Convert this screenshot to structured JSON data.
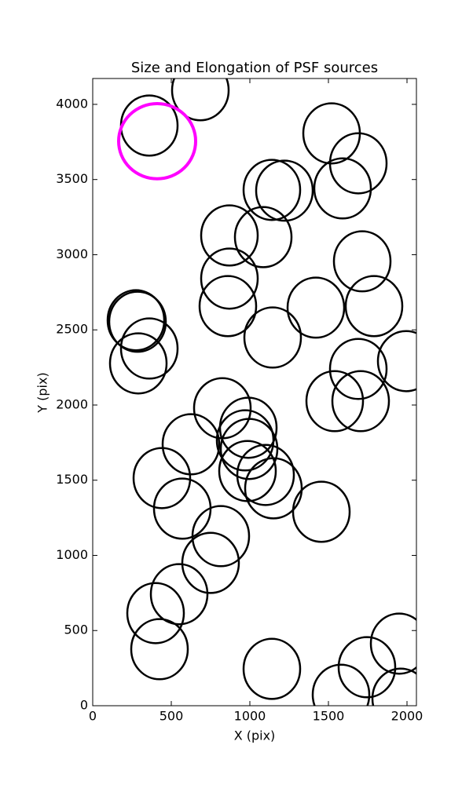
{
  "chart_data": {
    "type": "ellipse",
    "title": "Size and Elongation of PSF sources",
    "xlabel": "X (pix)",
    "ylabel": "Y (pix)",
    "xlim": [
      0,
      2060
    ],
    "ylim": [
      0,
      4172
    ],
    "xticks": [
      0,
      500,
      1000,
      1500,
      2000
    ],
    "yticks": [
      0,
      500,
      1000,
      1500,
      2000,
      2500,
      3000,
      3500,
      4000
    ],
    "series": [
      {
        "color": "#000000",
        "x": [
          360,
          685,
          1520,
          1690,
          1140,
          1220,
          1590,
          870,
          1085,
          1715,
          870,
          1790,
          860,
          1420,
          275,
          285,
          360,
          1145,
          290,
          1995,
          1690,
          1540,
          1705,
          825,
          990,
          970,
          625,
          995,
          985,
          1100,
          1150,
          440,
          1455,
          570,
          815,
          750,
          550,
          400,
          425,
          1950,
          1140,
          1745,
          1580,
          1960
        ],
        "y": [
          3859,
          4094,
          3807,
          3608,
          3431,
          3426,
          3441,
          3128,
          3117,
          2956,
          2841,
          2658,
          2658,
          2648,
          2564,
          2554,
          2376,
          2449,
          2277,
          2292,
          2240,
          2026,
          2026,
          1979,
          1849,
          1765,
          1739,
          1708,
          1561,
          1535,
          1446,
          1514,
          1290,
          1311,
          1128,
          950,
          742,
          616,
          376,
          413,
          245,
          256,
          73,
          47
        ],
        "width": [
          360,
          360,
          360,
          360,
          360,
          360,
          360,
          360,
          360,
          360,
          360,
          360,
          360,
          360,
          360,
          360,
          360,
          360,
          360,
          360,
          360,
          360,
          360,
          360,
          360,
          360,
          360,
          360,
          360,
          360,
          360,
          360,
          360,
          360,
          360,
          360,
          360,
          360,
          360,
          360,
          360,
          360,
          360,
          360
        ],
        "height": [
          400,
          400,
          400,
          400,
          400,
          400,
          400,
          400,
          400,
          400,
          400,
          400,
          400,
          400,
          400,
          400,
          400,
          400,
          400,
          400,
          400,
          400,
          400,
          400,
          400,
          400,
          400,
          400,
          400,
          400,
          400,
          400,
          400,
          400,
          400,
          400,
          400,
          400,
          400,
          400,
          400,
          400,
          400,
          400
        ]
      },
      {
        "color": "#ff00ff",
        "x": [
          410
        ],
        "y": [
          3755
        ],
        "width": [
          490
        ],
        "height": [
          500
        ]
      }
    ]
  }
}
